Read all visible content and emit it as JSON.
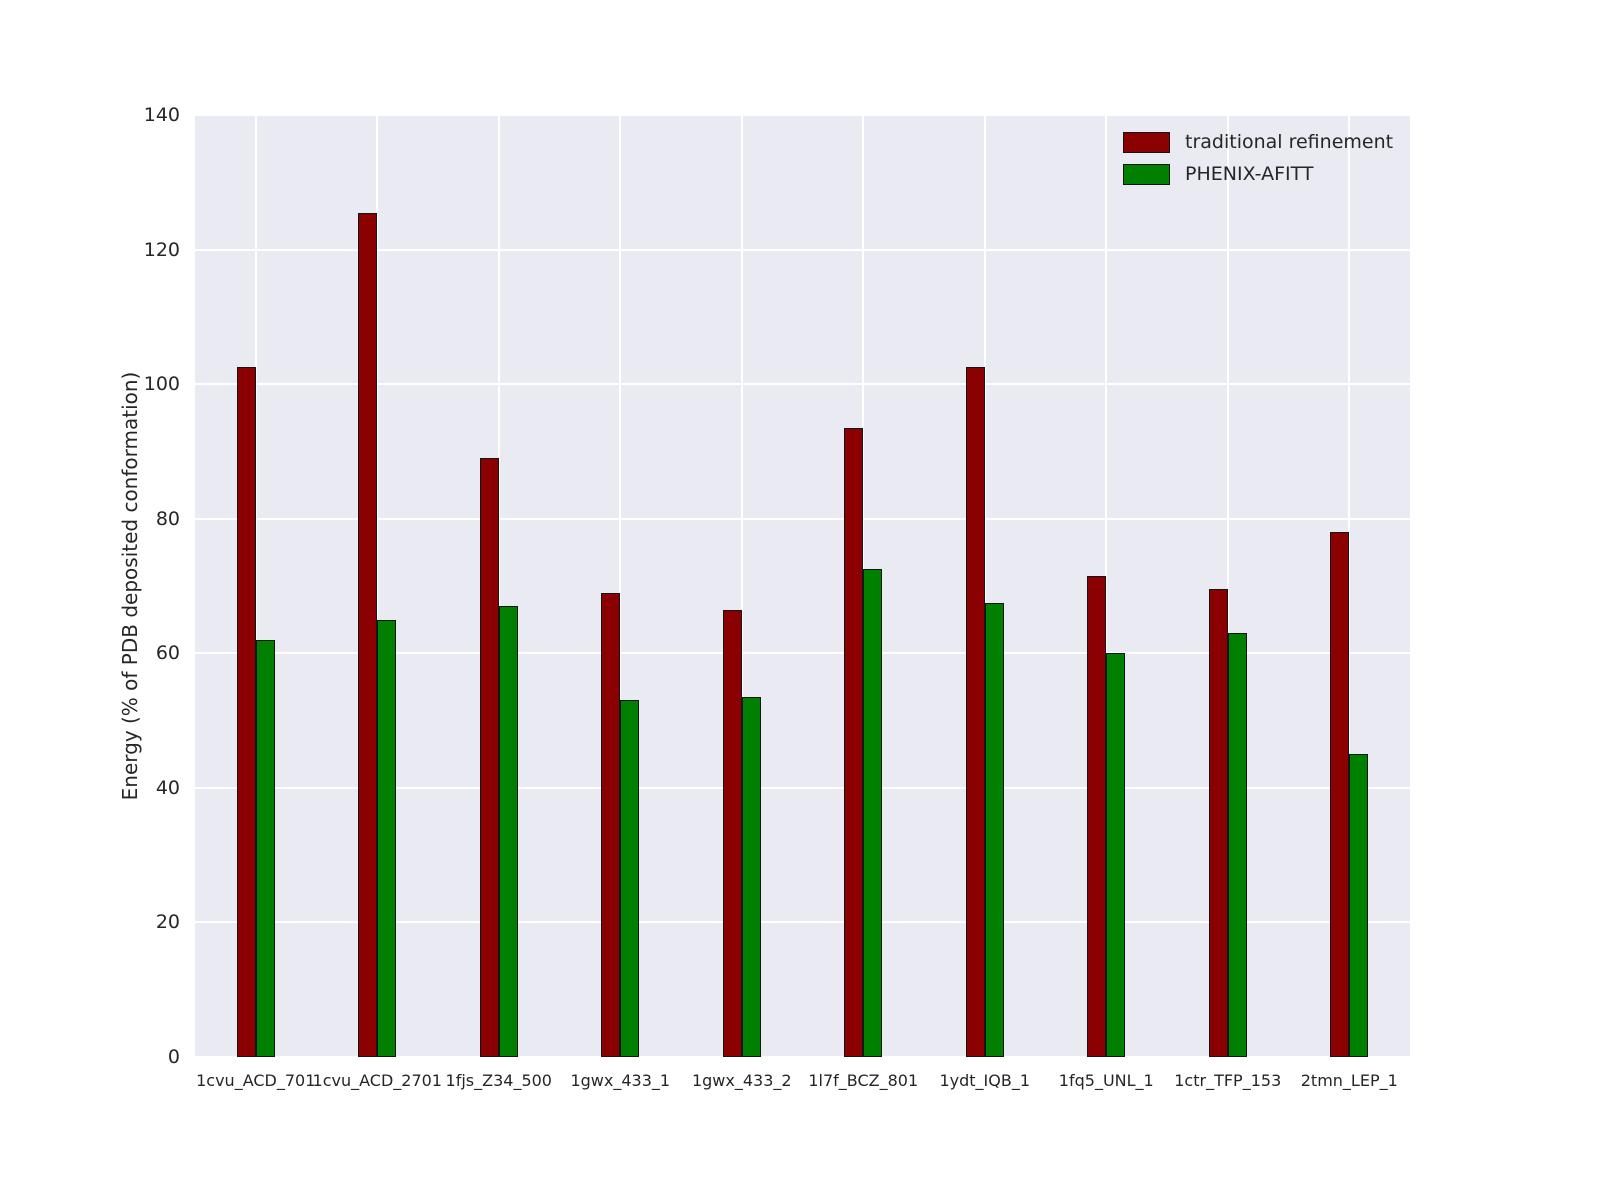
{
  "figure": {
    "background": "#ffffff",
    "plot_background": "#eaeaf2",
    "grid_color": "#ffffff",
    "text_color": "#262626",
    "bar_edge_color": "#151515"
  },
  "chart_data": {
    "type": "bar",
    "title": "",
    "xlabel": "",
    "ylabel": "Energy (% of PDB deposited conformation)",
    "ylim": [
      0,
      140
    ],
    "yticks": [
      0,
      20,
      40,
      60,
      80,
      100,
      120,
      140
    ],
    "grid": true,
    "legend_position": "upper right",
    "categories": [
      "1cvu_ACD_701",
      "1cvu_ACD_2701",
      "1fjs_Z34_500",
      "1gwx_433_1",
      "1gwx_433_2",
      "1l7f_BCZ_801",
      "1ydt_IQB_1",
      "1fq5_UNL_1",
      "1ctr_TFP_153",
      "2tmn_LEP_1"
    ],
    "series": [
      {
        "name": "traditional refinement",
        "color": "#8b0000",
        "values": [
          102.5,
          125.5,
          89,
          69,
          66.5,
          93.5,
          102.5,
          71.5,
          69.5,
          78
        ]
      },
      {
        "name": "PHENIX-AFITT",
        "color": "#008000",
        "values": [
          62,
          65,
          67,
          53,
          53.5,
          72.5,
          67.5,
          60,
          63,
          45
        ]
      }
    ]
  }
}
